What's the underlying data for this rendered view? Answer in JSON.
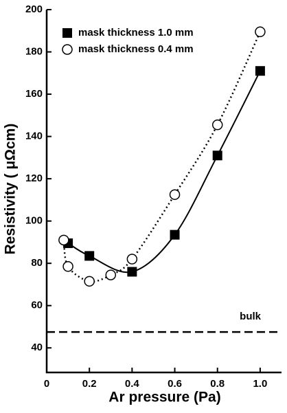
{
  "chart_data": {
    "type": "scatter",
    "x_label": "Ar pressure (Pa)",
    "y_label": "Resistivity ( μΩcm)",
    "xlim": [
      0,
      1.1
    ],
    "ylim": [
      30,
      200
    ],
    "xticks": [
      0,
      0.2,
      0.4,
      0.6,
      0.8,
      {
        "value": 1,
        "label": "1.0"
      }
    ],
    "yticks": [
      40,
      60,
      80,
      100,
      120,
      140,
      160,
      180,
      200
    ],
    "legend": "upper left",
    "series": [
      {
        "name": "mask thickness 1.0 mm",
        "marker": "square",
        "line": "solid",
        "color": "#000000",
        "x": [
          0.1,
          0.2,
          0.4,
          0.6,
          0.8,
          1.0
        ],
        "values": [
          89.5,
          83.5,
          76,
          93.5,
          131,
          171
        ]
      },
      {
        "name": "mask thickness 0.4 mm",
        "marker": "circle",
        "line": "dotted",
        "color": "#000000",
        "x": [
          0.08,
          0.1,
          0.2,
          0.3,
          0.4,
          0.6,
          0.8,
          1.0
        ],
        "values": [
          91,
          78.5,
          71.5,
          74.5,
          82,
          112.5,
          145.5,
          189.5
        ]
      }
    ],
    "reference_line": {
      "label": "bulk",
      "value": 47.5
    }
  }
}
